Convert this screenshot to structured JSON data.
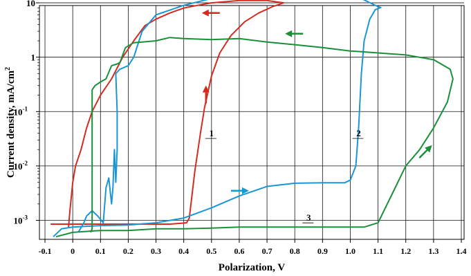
{
  "chart_data": {
    "type": "line",
    "title": "",
    "xlabel": "Polarization, V",
    "ylabel_main": "Current density, mA/cm",
    "ylabel_sup": "2",
    "x_scale": "linear",
    "y_scale": "log",
    "xlim": [
      -0.12,
      1.41
    ],
    "ylim_log10": [
      -3.35,
      0.95
    ],
    "x_ticks": [
      -0.1,
      0,
      0.1,
      0.2,
      0.3,
      0.4,
      0.5,
      0.6,
      0.7,
      0.8,
      0.9,
      1.0,
      1.1,
      1.2,
      1.3,
      1.4
    ],
    "x_tick_labels": [
      "-0.1",
      "0",
      "0.1",
      "0.2",
      "0.3",
      "0.4",
      "0.5",
      "0.6",
      "0.7",
      "0.8",
      "0.9",
      "1.0",
      "1.1",
      "1.2",
      "1.3",
      "1.4"
    ],
    "y_ticks": [
      {
        "exp": 1,
        "base": "10",
        "sup": ""
      },
      {
        "exp": 0,
        "base": "1",
        "sup": ""
      },
      {
        "exp": -1,
        "base": "10",
        "sup": "-1"
      },
      {
        "exp": -2,
        "base": "10",
        "sup": "-2"
      },
      {
        "exp": -3,
        "base": "10",
        "sup": "-3"
      }
    ],
    "grid": true,
    "series": [
      {
        "label": "1",
        "color": "#d42a20",
        "points": [
          [
            -0.08,
            0.00085
          ],
          [
            0.0,
            0.00085
          ],
          [
            0.1,
            0.00085
          ],
          [
            0.2,
            0.00085
          ],
          [
            0.3,
            0.00085
          ],
          [
            0.35,
            0.00085
          ],
          [
            0.41,
            0.0009
          ],
          [
            0.42,
            0.0011
          ],
          [
            0.44,
            0.008
          ],
          [
            0.46,
            0.04
          ],
          [
            0.475,
            0.12
          ],
          [
            0.5,
            0.45
          ],
          [
            0.53,
            1.2
          ],
          [
            0.57,
            2.5
          ],
          [
            0.62,
            4.5
          ],
          [
            0.67,
            6.5
          ],
          [
            0.72,
            8.5
          ],
          [
            0.76,
            10
          ],
          [
            0.7,
            11
          ],
          [
            0.6,
            11
          ],
          [
            0.5,
            10
          ],
          [
            0.45,
            9
          ],
          [
            0.4,
            8
          ],
          [
            0.35,
            6.5
          ],
          [
            0.3,
            5
          ],
          [
            0.26,
            3.8
          ],
          [
            0.22,
            2
          ],
          [
            0.18,
            1
          ],
          [
            0.14,
            0.4
          ],
          [
            0.1,
            0.2
          ],
          [
            0.07,
            0.1
          ],
          [
            0.05,
            0.05
          ],
          [
            0.03,
            0.02
          ],
          [
            0.01,
            0.01
          ],
          [
            0.0,
            0.005
          ],
          [
            -0.01,
            0.0015
          ],
          [
            -0.015,
            0.00075
          ]
        ],
        "arrows": [
          {
            "x": 0.48,
            "y": 0.2,
            "dir": "up"
          },
          {
            "x": 0.5,
            "y": 6.5,
            "dir": "left"
          }
        ],
        "label_pos": [
          0.5,
          0.035
        ]
      },
      {
        "label": "2",
        "color": "#1a96d4",
        "points": [
          [
            -0.07,
            0.0005
          ],
          [
            -0.04,
            0.0007
          ],
          [
            0.0,
            0.00075
          ],
          [
            0.1,
            0.0008
          ],
          [
            0.2,
            0.00082
          ],
          [
            0.3,
            0.0009
          ],
          [
            0.4,
            0.0011
          ],
          [
            0.5,
            0.0017
          ],
          [
            0.6,
            0.0028
          ],
          [
            0.7,
            0.0042
          ],
          [
            0.8,
            0.0048
          ],
          [
            0.9,
            0.0049
          ],
          [
            0.98,
            0.0049
          ],
          [
            1.0,
            0.0055
          ],
          [
            1.02,
            0.01
          ],
          [
            1.03,
            0.05
          ],
          [
            1.04,
            0.5
          ],
          [
            1.05,
            2
          ],
          [
            1.07,
            5
          ],
          [
            1.09,
            7.5
          ],
          [
            1.11,
            8.2
          ],
          [
            1.1,
            8.5
          ],
          [
            1.0,
            15
          ],
          [
            0.9,
            17
          ],
          [
            0.8,
            17
          ],
          [
            0.7,
            16
          ],
          [
            0.6,
            14
          ],
          [
            0.5,
            12
          ],
          [
            0.4,
            9
          ],
          [
            0.3,
            6
          ],
          [
            0.25,
            3
          ],
          [
            0.22,
            1
          ],
          [
            0.2,
            0.7
          ],
          [
            0.17,
            0.6
          ],
          [
            0.155,
            0.5
          ],
          [
            0.16,
            0.1
          ],
          [
            0.16,
            0.02
          ],
          [
            0.155,
            0.005
          ],
          [
            0.15,
            0.02
          ],
          [
            0.145,
            0.004
          ],
          [
            0.14,
            0.002
          ],
          [
            0.13,
            0.006
          ],
          [
            0.12,
            0.004
          ],
          [
            0.11,
            0.0009
          ],
          [
            0.09,
            0.0012
          ],
          [
            0.07,
            0.0015
          ],
          [
            0.05,
            0.0012
          ],
          [
            0.04,
            0.0009
          ],
          [
            0.02,
            0.0006
          ]
        ],
        "arrows": [
          {
            "x": 0.72,
            "y": 18,
            "dir": "left"
          },
          {
            "x": 0.6,
            "y": 0.0035,
            "dir": "right"
          }
        ],
        "label_pos": [
          1.03,
          0.035
        ]
      },
      {
        "label": "3",
        "color": "#1a8f3a",
        "points": [
          [
            -0.06,
            0.0005
          ],
          [
            0.0,
            0.0006
          ],
          [
            0.1,
            0.00065
          ],
          [
            0.2,
            0.00065
          ],
          [
            0.3,
            0.0007
          ],
          [
            0.4,
            0.0007
          ],
          [
            0.5,
            0.00072
          ],
          [
            0.6,
            0.00075
          ],
          [
            0.7,
            0.00075
          ],
          [
            0.8,
            0.00075
          ],
          [
            0.9,
            0.00075
          ],
          [
            1.0,
            0.00075
          ],
          [
            1.05,
            0.00075
          ],
          [
            1.1,
            0.0009
          ],
          [
            1.15,
            0.003
          ],
          [
            1.2,
            0.01
          ],
          [
            1.25,
            0.02
          ],
          [
            1.3,
            0.05
          ],
          [
            1.35,
            0.15
          ],
          [
            1.37,
            0.4
          ],
          [
            1.36,
            0.6
          ],
          [
            1.3,
            0.9
          ],
          [
            1.2,
            1.1
          ],
          [
            1.1,
            1.2
          ],
          [
            1.0,
            1.3
          ],
          [
            0.9,
            1.5
          ],
          [
            0.8,
            1.7
          ],
          [
            0.7,
            1.9
          ],
          [
            0.6,
            2.2
          ],
          [
            0.5,
            2.1
          ],
          [
            0.4,
            2.2
          ],
          [
            0.35,
            2.3
          ],
          [
            0.3,
            2
          ],
          [
            0.25,
            1.9
          ],
          [
            0.22,
            1.85
          ],
          [
            0.19,
            1.5
          ],
          [
            0.17,
            0.8
          ],
          [
            0.16,
            0.75
          ],
          [
            0.14,
            0.7
          ],
          [
            0.12,
            0.4
          ],
          [
            0.1,
            0.35
          ],
          [
            0.08,
            0.3
          ],
          [
            0.07,
            0.25
          ],
          [
            0.07,
            0.01
          ],
          [
            0.07,
            0.002
          ],
          [
            0.07,
            0.0007
          ],
          [
            0.065,
            0.0006
          ]
        ],
        "arrows": [
          {
            "x": 1.27,
            "y": 0.018,
            "dir": "upright"
          },
          {
            "x": 0.8,
            "y": 2.7,
            "dir": "left"
          }
        ],
        "label_pos": [
          0.85,
          0.00098
        ]
      }
    ]
  }
}
